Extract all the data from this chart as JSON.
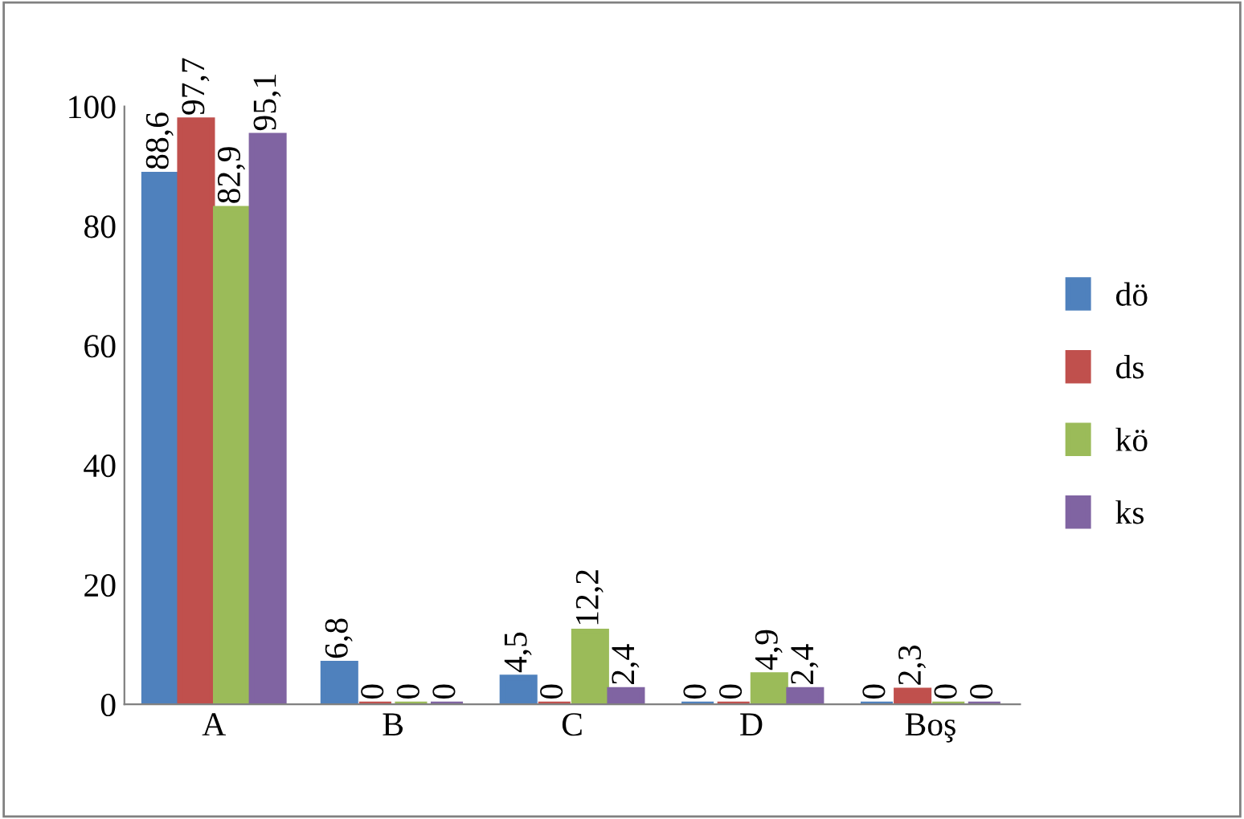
{
  "chart_data": {
    "type": "bar",
    "categories": [
      "A",
      "B",
      "C",
      "D",
      "Boş"
    ],
    "series": [
      {
        "name": "dö",
        "color": "#4f81bd",
        "values": [
          88.6,
          6.8,
          4.5,
          0,
          0
        ],
        "value_labels": [
          "88,6",
          "6,8",
          "4,5",
          "0",
          "0"
        ]
      },
      {
        "name": "ds",
        "color": "#c0504d",
        "values": [
          97.7,
          0,
          0,
          0,
          2.3
        ],
        "value_labels": [
          "97,7",
          "0",
          "0",
          "0",
          "2,3"
        ]
      },
      {
        "name": "kö",
        "color": "#9bbb59",
        "values": [
          82.9,
          0,
          12.2,
          4.9,
          0
        ],
        "value_labels": [
          "82,9",
          "0",
          "12,2",
          "4,9",
          "0"
        ]
      },
      {
        "name": "ks",
        "color": "#8064a2",
        "values": [
          95.1,
          0,
          2.4,
          2.4,
          0
        ],
        "value_labels": [
          "95,1",
          "0",
          "2,4",
          "2,4",
          "0"
        ]
      }
    ],
    "ylim": [
      0,
      100
    ],
    "yticks": [
      0,
      20,
      40,
      60,
      80,
      100
    ],
    "grid": false,
    "legend": "right"
  }
}
